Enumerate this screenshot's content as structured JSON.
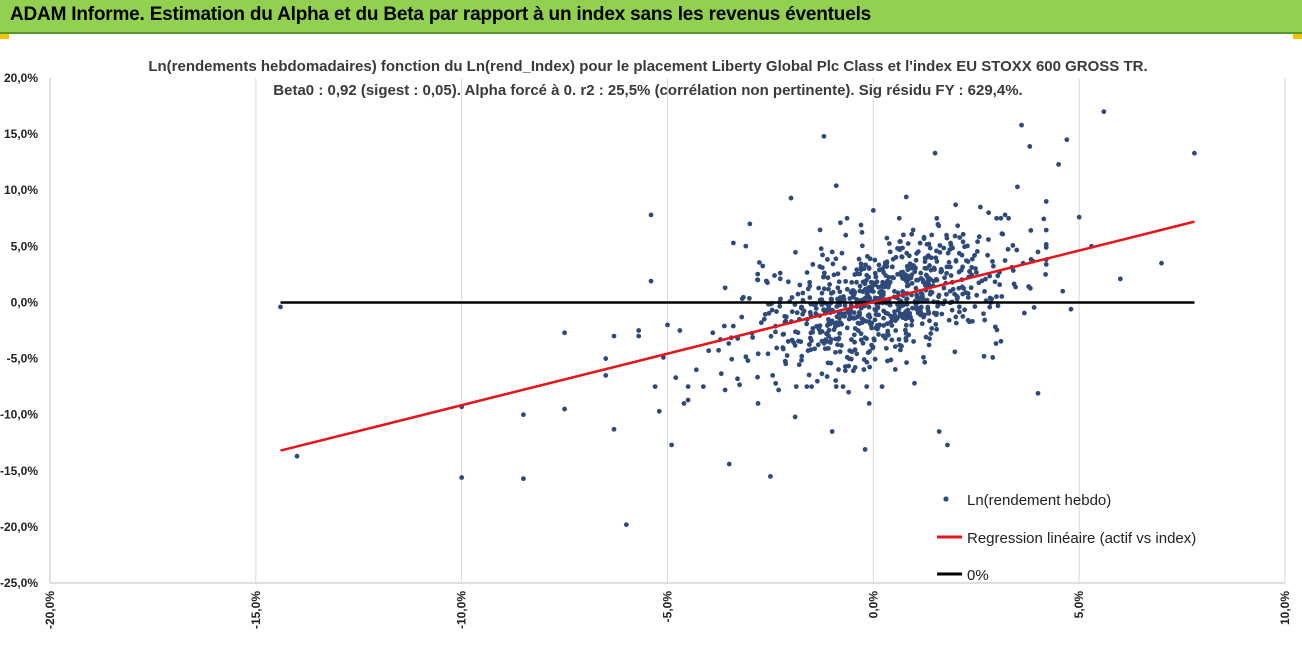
{
  "header": {
    "title": "ADAM Informe. Estimation du Alpha et du Beta par rapport à un index sans les revenus éventuels"
  },
  "colors": {
    "header_bg": "#92d050",
    "points": "#2e4a7a",
    "regression": "#e8141b",
    "zero_line": "#000000"
  },
  "chart_data": {
    "type": "scatter",
    "title": "Ln(rendements hebdomadaires) fonction du Ln(rend_Index) pour le placement Liberty Global Plc Class  et l'index EU STOXX 600 GROSS TR.",
    "subtitle": "Beta0 : 0,92  (sigest : 0,05).  Alpha forcé à 0. r2 : 25,5% (corrélation non pertinente). Sig résidu FY : 629,4%.",
    "xlabel": "",
    "ylabel": "",
    "xlim": [
      -0.2,
      0.1
    ],
    "ylim": [
      -0.25,
      0.2
    ],
    "x_tick_labels": [
      "-20,0%",
      "-15,0%",
      "-10,0%",
      "-5,0%",
      "0,0%",
      "5,0%",
      "10,0%"
    ],
    "y_tick_labels": [
      "20,0%",
      "15,0%",
      "10,0%",
      "5,0%",
      "0,0%",
      "-5,0%",
      "-10,0%",
      "-15,0%",
      "-20,0%",
      "-25,0%"
    ],
    "grid": "vertical",
    "legend_position": "bottom-right",
    "series": [
      {
        "name": "Ln(rendement hebdo)",
        "kind": "scatter",
        "generated_cluster": {
          "count": 820,
          "beta": 0.92,
          "x_center": 0.002,
          "x_spread": 0.016,
          "resid_spread": 0.027,
          "seed": 7
        },
        "points": [
          [
            -0.144,
            -0.004
          ],
          [
            -0.14,
            -0.137
          ],
          [
            -0.1,
            -0.156
          ],
          [
            -0.1,
            -0.093
          ],
          [
            -0.085,
            -0.157
          ],
          [
            -0.085,
            -0.1
          ],
          [
            -0.075,
            -0.095
          ],
          [
            -0.075,
            -0.027
          ],
          [
            -0.065,
            -0.05
          ],
          [
            -0.065,
            -0.065
          ],
          [
            -0.063,
            -0.113
          ],
          [
            -0.063,
            -0.03
          ],
          [
            -0.06,
            -0.198
          ],
          [
            -0.057,
            -0.025
          ],
          [
            -0.057,
            -0.03
          ],
          [
            -0.054,
            0.078
          ],
          [
            -0.054,
            0.019
          ],
          [
            -0.053,
            -0.075
          ],
          [
            -0.052,
            -0.097
          ],
          [
            -0.051,
            -0.049
          ],
          [
            -0.05,
            -0.02
          ],
          [
            -0.049,
            -0.127
          ],
          [
            -0.048,
            -0.067
          ],
          [
            -0.047,
            -0.025
          ],
          [
            -0.046,
            -0.09
          ],
          [
            -0.045,
            -0.087
          ],
          [
            -0.043,
            -0.06
          ],
          [
            -0.04,
            -0.043
          ],
          [
            -0.039,
            -0.027
          ],
          [
            -0.036,
            -0.078
          ],
          [
            -0.036,
            0.013
          ],
          [
            -0.035,
            -0.144
          ],
          [
            -0.034,
            0.053
          ],
          [
            -0.033,
            -0.068
          ],
          [
            -0.03,
            0.07
          ],
          [
            -0.028,
            -0.09
          ],
          [
            -0.025,
            -0.155
          ],
          [
            -0.024,
            0.024
          ],
          [
            -0.023,
            -0.078
          ],
          [
            -0.02,
            0.093
          ],
          [
            -0.019,
            -0.102
          ],
          [
            -0.012,
            0.148
          ],
          [
            -0.01,
            -0.115
          ],
          [
            -0.009,
            0.104
          ],
          [
            -0.008,
            0.071
          ],
          [
            -0.006,
            -0.08
          ],
          [
            -0.003,
            0.069
          ],
          [
            -0.002,
            -0.131
          ],
          [
            -0.001,
            -0.09
          ],
          [
            0.0,
            0.082
          ],
          [
            0.008,
            0.094
          ],
          [
            0.01,
            -0.072
          ],
          [
            0.015,
            0.133
          ],
          [
            0.016,
            -0.115
          ],
          [
            0.018,
            -0.127
          ],
          [
            0.02,
            0.087
          ],
          [
            0.026,
            0.085
          ],
          [
            0.028,
            0.08
          ],
          [
            0.029,
            -0.049
          ],
          [
            0.032,
            0.078
          ],
          [
            0.035,
            0.103
          ],
          [
            0.036,
            0.158
          ],
          [
            0.038,
            0.139
          ],
          [
            0.04,
            -0.081
          ],
          [
            0.04,
            0.045
          ],
          [
            0.042,
            0.09
          ],
          [
            0.045,
            0.123
          ],
          [
            0.046,
            0.01
          ],
          [
            0.047,
            0.145
          ],
          [
            0.048,
            -0.006
          ],
          [
            0.05,
            0.076
          ],
          [
            0.053,
            0.05
          ],
          [
            0.056,
            0.17
          ],
          [
            0.06,
            0.021
          ],
          [
            0.07,
            0.035
          ],
          [
            0.078,
            0.133
          ]
        ]
      },
      {
        "name": "Regression linéaire (actif vs index)",
        "kind": "line",
        "x": [
          -0.144,
          0.078
        ],
        "y": [
          -0.132,
          0.072
        ]
      },
      {
        "name": "0%",
        "kind": "line",
        "x": [
          -0.144,
          0.078
        ],
        "y": [
          0.0,
          0.0
        ]
      }
    ]
  }
}
